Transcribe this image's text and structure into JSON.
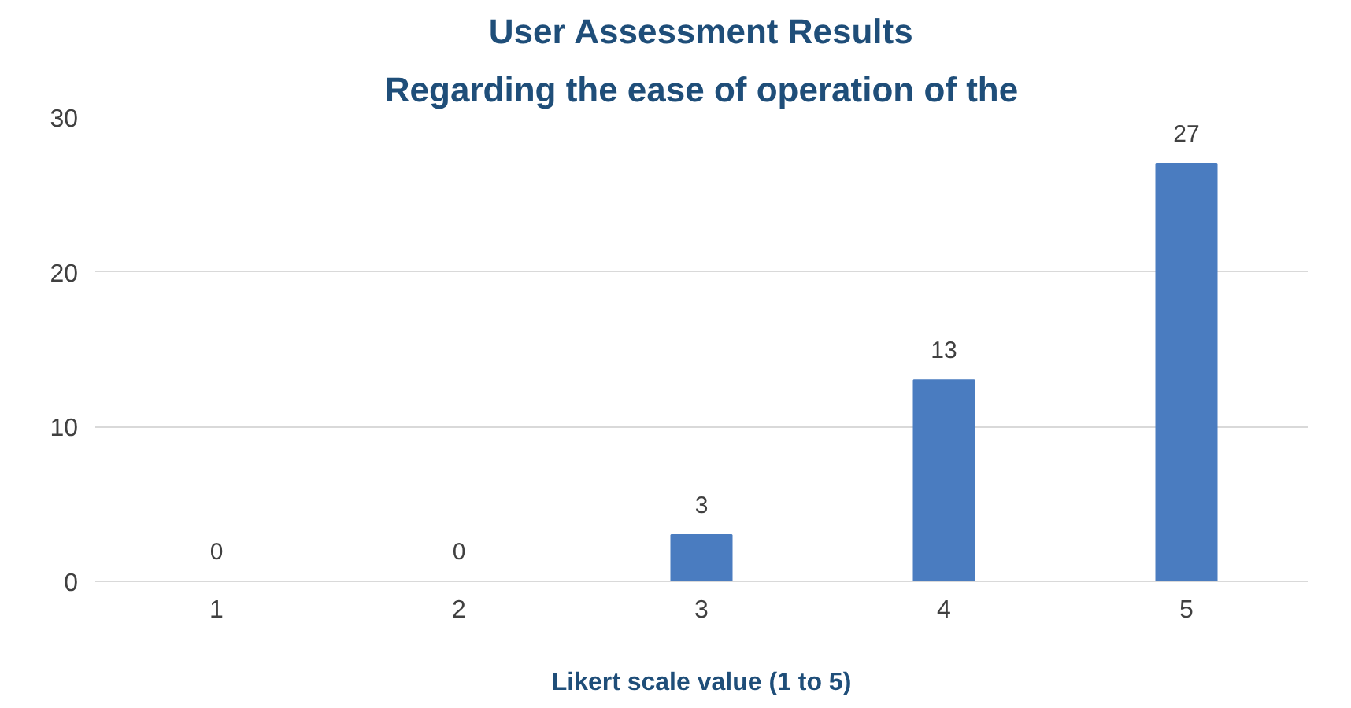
{
  "chart_data": {
    "type": "bar",
    "title": "User Assessment Results",
    "subtitle": "Regarding the ease of operation of the",
    "xlabel": "Likert scale value (1 to 5)",
    "categories": [
      "1",
      "2",
      "3",
      "4",
      "5"
    ],
    "values": [
      0,
      0,
      3,
      13,
      27
    ],
    "color": "#4a7cc0",
    "ylim": [
      0,
      30
    ],
    "yticks": [
      0,
      10,
      20,
      30
    ],
    "grid": "y",
    "data_labels": true
  }
}
